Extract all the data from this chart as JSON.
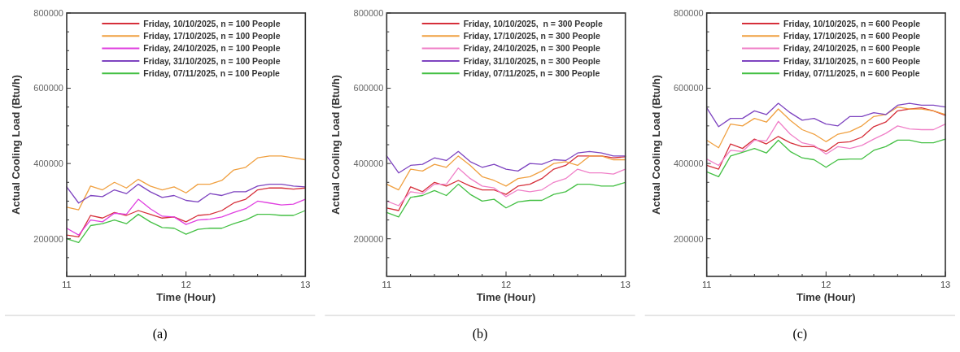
{
  "chart_data": [
    {
      "type": "line",
      "xlabel": "Time (Hour)",
      "ylabel": "Actual Cooling Load (Btu/h)",
      "annotations": [
        "(a)"
      ],
      "legend": "top right",
      "line_style": "solid",
      "marker": "none",
      "grid": false,
      "x": [
        11.0,
        11.1,
        11.2,
        11.3,
        11.4,
        11.5,
        11.6,
        11.7,
        11.8,
        11.9,
        12.0,
        12.1,
        12.2,
        12.3,
        12.4,
        12.5,
        12.6,
        12.7,
        12.8,
        12.9,
        13.0
      ],
      "xlim": [
        11,
        13
      ],
      "xticks": [
        11,
        {
          "value": 11.2,
          "label": null
        },
        {
          "value": 11.4,
          "label": null
        },
        {
          "value": 11.6,
          "label": null
        },
        {
          "value": 11.8,
          "label": null
        },
        12,
        {
          "value": 12.2,
          "label": null
        },
        {
          "value": 12.4,
          "label": null
        },
        {
          "value": 12.6,
          "label": null
        },
        {
          "value": 12.8,
          "label": null
        },
        13
      ],
      "ylim": [
        100000,
        800000
      ],
      "yticks": [
        {
          "value": 150000,
          "label": null
        },
        200000,
        {
          "value": 250000,
          "label": null
        },
        {
          "value": 300000,
          "label": null
        },
        {
          "value": 350000,
          "label": null
        },
        400000,
        {
          "value": 450000,
          "label": null
        },
        {
          "value": 500000,
          "label": null
        },
        {
          "value": 550000,
          "label": null
        },
        600000,
        {
          "value": 650000,
          "label": null
        },
        {
          "value": 700000,
          "label": null
        },
        {
          "value": 750000,
          "label": null
        },
        800000
      ],
      "series": [
        {
          "name": "Friday, 10/10/2025, n = 100 People",
          "color": "#d62f3a",
          "values": [
            210000,
            205000,
            262000,
            255000,
            270000,
            262000,
            275000,
            265000,
            255000,
            258000,
            245000,
            262000,
            265000,
            275000,
            295000,
            305000,
            330000,
            335000,
            335000,
            332000,
            335000
          ]
        },
        {
          "name": "Friday, 17/10/2025, n = 100 People",
          "color": "#f0a040",
          "values": [
            284000,
            277000,
            340000,
            330000,
            350000,
            335000,
            358000,
            340000,
            330000,
            338000,
            322000,
            345000,
            345000,
            355000,
            383000,
            390000,
            415000,
            420000,
            420000,
            415000,
            410000
          ]
        },
        {
          "name": "Friday, 24/10/2025, n = 100 People",
          "color": "#e040e0",
          "values": [
            228000,
            210000,
            250000,
            245000,
            268000,
            265000,
            305000,
            280000,
            260000,
            258000,
            238000,
            250000,
            252000,
            258000,
            270000,
            280000,
            300000,
            295000,
            290000,
            292000,
            305000
          ]
        },
        {
          "name": "Friday, 31/10/2025, n = 100 People",
          "color": "#7e44c0",
          "values": [
            338000,
            295000,
            315000,
            312000,
            330000,
            320000,
            345000,
            325000,
            310000,
            315000,
            302000,
            298000,
            320000,
            315000,
            325000,
            325000,
            340000,
            345000,
            345000,
            340000,
            338000
          ]
        },
        {
          "name": "Friday, 07/11/2025, n = 100 People",
          "color": "#44c044",
          "values": [
            200000,
            190000,
            235000,
            240000,
            250000,
            240000,
            265000,
            245000,
            230000,
            228000,
            212000,
            225000,
            228000,
            228000,
            240000,
            250000,
            265000,
            265000,
            262000,
            262000,
            275000
          ]
        }
      ]
    },
    {
      "type": "line",
      "xlabel": "Time (Hour)",
      "ylabel": "Actual Cooling Load (Btu/h)",
      "annotations": [
        "(b)"
      ],
      "legend": "top right",
      "line_style": "solid",
      "marker": "none",
      "grid": false,
      "x": [
        11.0,
        11.1,
        11.2,
        11.3,
        11.4,
        11.5,
        11.6,
        11.7,
        11.8,
        11.9,
        12.0,
        12.1,
        12.2,
        12.3,
        12.4,
        12.5,
        12.6,
        12.7,
        12.8,
        12.9,
        13.0
      ],
      "xlim": [
        11,
        13
      ],
      "xticks": [
        11,
        {
          "value": 11.2,
          "label": null
        },
        {
          "value": 11.4,
          "label": null
        },
        {
          "value": 11.6,
          "label": null
        },
        {
          "value": 11.8,
          "label": null
        },
        12,
        {
          "value": 12.2,
          "label": null
        },
        {
          "value": 12.4,
          "label": null
        },
        {
          "value": 12.6,
          "label": null
        },
        {
          "value": 12.8,
          "label": null
        },
        13
      ],
      "ylim": [
        100000,
        800000
      ],
      "yticks": [
        {
          "value": 150000,
          "label": null
        },
        200000,
        {
          "value": 250000,
          "label": null
        },
        {
          "value": 300000,
          "label": null
        },
        {
          "value": 350000,
          "label": null
        },
        400000,
        {
          "value": 450000,
          "label": null
        },
        {
          "value": 500000,
          "label": null
        },
        {
          "value": 550000,
          "label": null
        },
        600000,
        {
          "value": 650000,
          "label": null
        },
        {
          "value": 700000,
          "label": null
        },
        {
          "value": 750000,
          "label": null
        },
        800000
      ],
      "series": [
        {
          "name": "Friday, 10/10/2025,  n = 300 People",
          "color": "#d62f3a",
          "values": [
            282000,
            275000,
            338000,
            325000,
            350000,
            340000,
            355000,
            340000,
            330000,
            330000,
            318000,
            340000,
            345000,
            360000,
            385000,
            395000,
            420000,
            420000,
            420000,
            415000,
            418000
          ]
        },
        {
          "name": "Friday, 17/10/2025, n = 300 People",
          "color": "#f0a040",
          "values": [
            345000,
            330000,
            385000,
            380000,
            398000,
            390000,
            420000,
            395000,
            365000,
            355000,
            340000,
            360000,
            365000,
            380000,
            400000,
            405000,
            395000,
            420000,
            420000,
            410000,
            410000
          ]
        },
        {
          "name": "Friday, 24/10/2025, n = 300 People",
          "color": "#f080c8",
          "values": [
            300000,
            288000,
            325000,
            320000,
            345000,
            345000,
            388000,
            360000,
            340000,
            335000,
            312000,
            330000,
            325000,
            330000,
            350000,
            360000,
            385000,
            375000,
            375000,
            372000,
            385000
          ]
        },
        {
          "name": "Friday, 31/10/2025, n = 300 People",
          "color": "#7e44c0",
          "values": [
            420000,
            375000,
            395000,
            398000,
            415000,
            408000,
            432000,
            405000,
            390000,
            398000,
            385000,
            380000,
            400000,
            398000,
            410000,
            408000,
            428000,
            432000,
            428000,
            420000,
            420000
          ]
        },
        {
          "name": "Friday, 07/11/2025, n = 300 People",
          "color": "#44c044",
          "values": [
            270000,
            258000,
            310000,
            315000,
            328000,
            315000,
            345000,
            318000,
            300000,
            305000,
            282000,
            298000,
            302000,
            302000,
            318000,
            325000,
            345000,
            345000,
            340000,
            340000,
            350000
          ]
        }
      ]
    },
    {
      "type": "line",
      "xlabel": "Time (Hour)",
      "ylabel": "Actual Cooling Load (Btu/h)",
      "annotations": [
        "(c)"
      ],
      "legend": "top right",
      "line_style": "solid",
      "marker": "none",
      "grid": false,
      "x": [
        11.0,
        11.1,
        11.2,
        11.3,
        11.4,
        11.5,
        11.6,
        11.7,
        11.8,
        11.9,
        12.0,
        12.1,
        12.2,
        12.3,
        12.4,
        12.5,
        12.6,
        12.7,
        12.8,
        12.9,
        13.0
      ],
      "xlim": [
        11,
        13
      ],
      "xticks": [
        11,
        {
          "value": 11.2,
          "label": null
        },
        {
          "value": 11.4,
          "label": null
        },
        {
          "value": 11.6,
          "label": null
        },
        {
          "value": 11.8,
          "label": null
        },
        12,
        {
          "value": 12.2,
          "label": null
        },
        {
          "value": 12.4,
          "label": null
        },
        {
          "value": 12.6,
          "label": null
        },
        {
          "value": 12.8,
          "label": null
        },
        13
      ],
      "ylim": [
        100000,
        800000
      ],
      "yticks": [
        {
          "value": 150000,
          "label": null
        },
        200000,
        {
          "value": 250000,
          "label": null
        },
        {
          "value": 300000,
          "label": null
        },
        {
          "value": 350000,
          "label": null
        },
        400000,
        {
          "value": 450000,
          "label": null
        },
        {
          "value": 500000,
          "label": null
        },
        {
          "value": 550000,
          "label": null
        },
        600000,
        {
          "value": 650000,
          "label": null
        },
        {
          "value": 700000,
          "label": null
        },
        {
          "value": 750000,
          "label": null
        },
        800000
      ],
      "series": [
        {
          "name": "Friday, 10/10/2025, n = 600 People",
          "color": "#d62f3a",
          "values": [
            395000,
            385000,
            452000,
            440000,
            465000,
            452000,
            472000,
            455000,
            445000,
            445000,
            432000,
            455000,
            458000,
            470000,
            498000,
            510000,
            540000,
            545000,
            548000,
            540000,
            528000
          ]
        },
        {
          "name": "Friday, 17/10/2025, n = 600 People",
          "color": "#f0a040",
          "values": [
            462000,
            442000,
            505000,
            500000,
            520000,
            510000,
            545000,
            515000,
            490000,
            478000,
            458000,
            478000,
            485000,
            500000,
            525000,
            530000,
            550000,
            545000,
            545000,
            540000,
            530000
          ]
        },
        {
          "name": "Friday, 24/10/2025, n = 600 People",
          "color": "#f080c8",
          "values": [
            412000,
            395000,
            435000,
            432000,
            462000,
            460000,
            512000,
            478000,
            455000,
            448000,
            425000,
            445000,
            440000,
            448000,
            465000,
            480000,
            500000,
            492000,
            490000,
            490000,
            505000
          ]
        },
        {
          "name": "Friday, 31/10/2025, n = 600 People",
          "color": "#7e44c0",
          "values": [
            548000,
            498000,
            520000,
            520000,
            540000,
            530000,
            560000,
            535000,
            515000,
            520000,
            505000,
            500000,
            525000,
            525000,
            535000,
            530000,
            555000,
            560000,
            555000,
            555000,
            550000
          ]
        },
        {
          "name": "Friday, 07/11/2025, n = 600 People",
          "color": "#44c044",
          "values": [
            378000,
            365000,
            420000,
            430000,
            440000,
            428000,
            462000,
            432000,
            415000,
            410000,
            390000,
            410000,
            412000,
            412000,
            435000,
            445000,
            462000,
            462000,
            455000,
            455000,
            465000
          ]
        }
      ]
    }
  ]
}
